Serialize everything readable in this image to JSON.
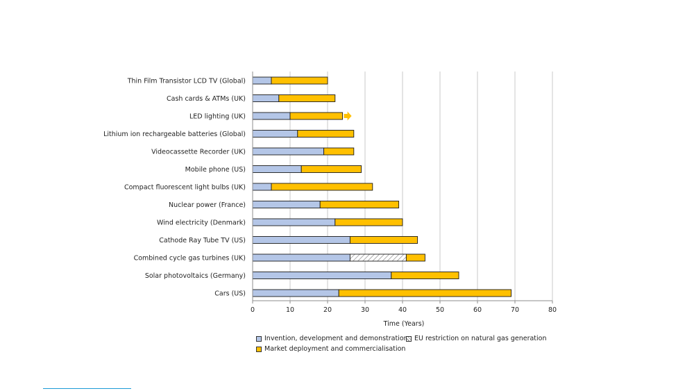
{
  "chart_data": {
    "type": "bar",
    "orientation": "horizontal",
    "stacked": true,
    "title": "",
    "xlabel": "Time (Years)",
    "ylabel": "",
    "xlim": [
      0,
      80
    ],
    "xticks": [
      "0",
      "10",
      "20",
      "30",
      "40",
      "50",
      "60",
      "70",
      "80"
    ],
    "grid": true,
    "categories": [
      "Thin Film Transistor LCD TV (Global)",
      "Cash cards & ATMs (UK)",
      "LED lighting (UK)",
      "Lithium ion rechargeable batteries (Global)",
      "Videocassette Recorder (UK)",
      "Mobile phone (US)",
      "Compact fluorescent light bulbs (UK)",
      "Nuclear power (France)",
      "Wind electricity (Denmark)",
      "Cathode Ray Tube TV (US)",
      "Combined cycle gas turbines (UK)",
      "Solar photovoltaics (Germany)",
      "Cars (US)"
    ],
    "series": [
      {
        "name": "Invention, development and demonstration",
        "color": "#b4c6e7",
        "values": [
          5,
          7,
          10,
          12,
          19,
          13,
          5,
          18,
          22,
          26,
          26,
          37,
          23
        ]
      },
      {
        "name": "EU restriction on natural gas generation",
        "pattern": "hatch",
        "values": [
          0,
          0,
          0,
          0,
          0,
          0,
          0,
          0,
          0,
          0,
          15,
          0,
          0
        ]
      },
      {
        "name": "Market deployment and commercialisation",
        "color": "#ffc000",
        "values": [
          15,
          15,
          14,
          15,
          8,
          16,
          27,
          21,
          18,
          18,
          5,
          18,
          46
        ]
      }
    ],
    "annotations": [
      {
        "category": "LED lighting (UK)",
        "type": "arrow",
        "meaning": "ongoing",
        "color": "#ffc000"
      }
    ],
    "legend_position": "bottom"
  }
}
